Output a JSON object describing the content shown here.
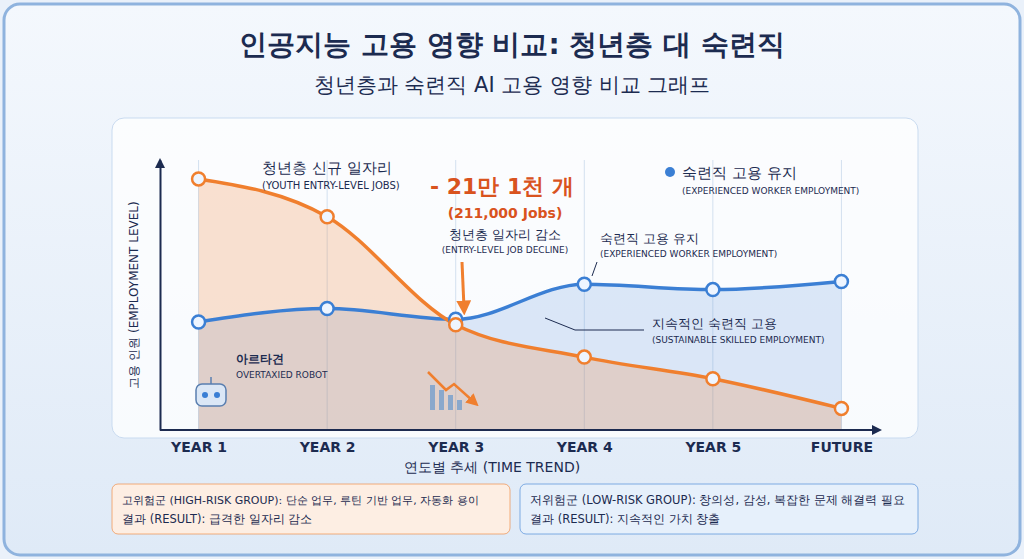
{
  "chart_data": {
    "type": "line",
    "title": "인공지능 고용 영향 비교: 청년층 대 숙련직",
    "subtitle": "청년층과 숙련직 AI 고용 영향 비교 그래프",
    "x_label": "연도별 추세 (TIME TREND)",
    "y_label": "고용 인원 (EMPLOYMENT LEVEL)",
    "categories": [
      "YEAR 1",
      "YEAR 2",
      "YEAR 3",
      "YEAR 4",
      "YEAR 5",
      "FUTURE"
    ],
    "series": [
      {
        "name": "청년층 신규 일자리",
        "color": "#f07f2e",
        "values": [
          93,
          79,
          39,
          27,
          19,
          8
        ]
      },
      {
        "name": "숙련직 고용 유지",
        "color": "#3b7fd4",
        "values": [
          40,
          45,
          41,
          54,
          52,
          55
        ]
      }
    ],
    "ylim": [
      0,
      100
    ],
    "tick_labels": "x",
    "grid": true,
    "marker": "circle",
    "line_style": "solid",
    "annotations": [
      "(YOUTH ENTRY-LEVEL JOBS)",
      "- 21만 1천 개",
      "(211,000 Jobs)",
      "청년층 일자리 감소",
      "(ENTRY-LEVEL JOB DECLINE)",
      "(EXPERIENCED WORKER EMPLOYMENT)",
      "숙련직 고용 유지",
      "(EXPERIENCED WORKER EMPLOYMENT)",
      "지속적인 숙련직 고용",
      "(SUSTAINABLE SKILLED EMPLOYMENT)",
      "아르타견",
      "OVERTAXIED ROBOT"
    ],
    "risk_groups": [
      {
        "description": "고위험군 (HIGH-RISK GROUP): 단순 업무, 루틴 기반 업무, 자동화 용이",
        "result": "결과 (RESULT): 급격한 일자리 감소"
      },
      {
        "description": "저위험군 (LOW-RISK GROUP): 창의성, 감성, 복잡한 문제 해결력 필요",
        "result": "결과 (RESULT): 지속적인 가치 창출"
      }
    ]
  }
}
